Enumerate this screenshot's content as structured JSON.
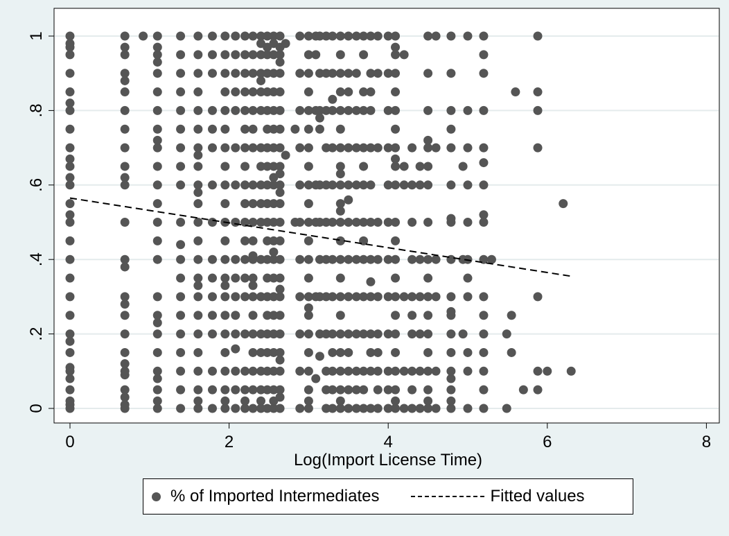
{
  "chart_data": {
    "type": "scatter",
    "xlabel": "Log(Import License Time)",
    "ylabel": "",
    "xlim": [
      0,
      8
    ],
    "ylim": [
      0,
      1
    ],
    "xticks": [
      0,
      2,
      4,
      6,
      8
    ],
    "xtick_labels": [
      "0",
      "2",
      "4",
      "6",
      "8"
    ],
    "yticks": [
      0,
      0.2,
      0.4,
      0.6,
      0.8,
      1
    ],
    "ytick_labels": [
      "0",
      ".2",
      ".4",
      ".6",
      ".8",
      "1"
    ],
    "grid": "horizontal",
    "legend_position": "bottom",
    "series": [
      {
        "name": "% of Imported Intermediates",
        "kind": "scatter",
        "color": "#555555",
        "columns": [
          {
            "x": 0,
            "y": [
              0,
              0.01,
              0.02,
              0.05,
              0.08,
              0.1,
              0.11,
              0.15,
              0.18,
              0.2,
              0.25,
              0.3,
              0.35,
              0.4,
              0.45,
              0.5,
              0.52,
              0.55,
              0.6,
              0.62,
              0.65,
              0.67,
              0.7,
              0.75,
              0.8,
              0.82,
              0.85,
              0.9,
              0.95,
              0.97,
              0.98,
              1
            ]
          },
          {
            "x": 0.69,
            "y": [
              0,
              0.01,
              0.03,
              0.05,
              0.09,
              0.1,
              0.12,
              0.15,
              0.2,
              0.25,
              0.28,
              0.3,
              0.38,
              0.4,
              0.5,
              0.6,
              0.62,
              0.65,
              0.7,
              0.75,
              0.8,
              0.85,
              0.88,
              0.9,
              0.95,
              0.97,
              1
            ]
          },
          {
            "x": 0.92,
            "y": [
              1
            ]
          },
          {
            "x": 1.1,
            "y": [
              0,
              0.02,
              0.05,
              0.08,
              0.1,
              0.15,
              0.2,
              0.23,
              0.25,
              0.3,
              0.4,
              0.45,
              0.5,
              0.55,
              0.6,
              0.65,
              0.7,
              0.72,
              0.75,
              0.8,
              0.85,
              0.9,
              0.93,
              0.95,
              0.97,
              1
            ]
          },
          {
            "x": 1.39,
            "y": [
              0,
              0.05,
              0.1,
              0.15,
              0.2,
              0.25,
              0.3,
              0.35,
              0.4,
              0.44,
              0.5,
              0.6,
              0.65,
              0.7,
              0.75,
              0.8,
              0.85,
              0.9,
              0.95,
              1
            ]
          },
          {
            "x": 1.61,
            "y": [
              0,
              0.02,
              0.05,
              0.1,
              0.15,
              0.2,
              0.25,
              0.3,
              0.33,
              0.35,
              0.4,
              0.45,
              0.5,
              0.55,
              0.58,
              0.6,
              0.65,
              0.68,
              0.7,
              0.75,
              0.8,
              0.85,
              0.9,
              0.95,
              1
            ]
          },
          {
            "x": 1.79,
            "y": [
              0,
              0.05,
              0.1,
              0.2,
              0.25,
              0.3,
              0.35,
              0.4,
              0.5,
              0.6,
              0.7,
              0.75,
              0.8,
              0.9,
              0.95,
              1
            ]
          },
          {
            "x": 1.95,
            "y": [
              0,
              0.02,
              0.05,
              0.1,
              0.15,
              0.2,
              0.25,
              0.3,
              0.33,
              0.35,
              0.4,
              0.45,
              0.5,
              0.55,
              0.6,
              0.65,
              0.7,
              0.75,
              0.8,
              0.85,
              0.9,
              0.95,
              1
            ]
          },
          {
            "x": 2.08,
            "y": [
              0,
              0.05,
              0.1,
              0.16,
              0.2,
              0.25,
              0.3,
              0.35,
              0.4,
              0.5,
              0.6,
              0.7,
              0.8,
              0.85,
              0.9,
              0.95,
              1
            ]
          },
          {
            "x": 2.2,
            "y": [
              0,
              0.02,
              0.05,
              0.1,
              0.2,
              0.3,
              0.35,
              0.4,
              0.45,
              0.5,
              0.55,
              0.6,
              0.65,
              0.7,
              0.75,
              0.8,
              0.85,
              0.9,
              0.95,
              1
            ]
          },
          {
            "x": 2.3,
            "y": [
              0,
              0.05,
              0.1,
              0.15,
              0.2,
              0.25,
              0.3,
              0.33,
              0.35,
              0.4,
              0.41,
              0.45,
              0.5,
              0.55,
              0.6,
              0.7,
              0.75,
              0.8,
              0.85,
              0.9,
              0.95,
              1
            ]
          },
          {
            "x": 2.4,
            "y": [
              0,
              0.02,
              0.05,
              0.1,
              0.15,
              0.2,
              0.3,
              0.4,
              0.5,
              0.55,
              0.6,
              0.65,
              0.7,
              0.8,
              0.85,
              0.88,
              0.9,
              0.95,
              0.98,
              1
            ]
          },
          {
            "x": 2.48,
            "y": [
              0,
              0.05,
              0.1,
              0.15,
              0.2,
              0.25,
              0.3,
              0.35,
              0.4,
              0.45,
              0.5,
              0.55,
              0.6,
              0.65,
              0.7,
              0.75,
              0.8,
              0.85,
              0.9,
              0.95,
              0.97,
              1
            ]
          },
          {
            "x": 2.56,
            "y": [
              0,
              0.02,
              0.05,
              0.1,
              0.15,
              0.2,
              0.25,
              0.3,
              0.35,
              0.4,
              0.42,
              0.45,
              0.5,
              0.55,
              0.6,
              0.62,
              0.65,
              0.7,
              0.75,
              0.8,
              0.85,
              0.9,
              0.95,
              0.98,
              1
            ]
          },
          {
            "x": 2.64,
            "y": [
              0,
              0.03,
              0.05,
              0.1,
              0.13,
              0.15,
              0.2,
              0.25,
              0.3,
              0.32,
              0.35,
              0.4,
              0.45,
              0.5,
              0.55,
              0.58,
              0.6,
              0.63,
              0.65,
              0.7,
              0.75,
              0.8,
              0.85,
              0.9,
              0.93,
              0.95,
              0.97,
              1
            ]
          },
          {
            "x": 2.71,
            "y": [
              0.68,
              0.98
            ]
          },
          {
            "x": 2.83,
            "y": [
              0.5,
              0.75
            ]
          },
          {
            "x": 2.89,
            "y": [
              0,
              0.1,
              0.2,
              0.3,
              0.4,
              0.5,
              0.6,
              0.7,
              0.8,
              0.9,
              1
            ]
          },
          {
            "x": 3.0,
            "y": [
              0,
              0.02,
              0.05,
              0.1,
              0.15,
              0.2,
              0.25,
              0.27,
              0.3,
              0.35,
              0.4,
              0.45,
              0.5,
              0.55,
              0.6,
              0.65,
              0.7,
              0.75,
              0.8,
              0.85,
              0.9,
              0.95,
              1
            ]
          },
          {
            "x": 3.09,
            "y": [
              0.08,
              0.3,
              0.5,
              0.6,
              0.8,
              0.95,
              1
            ]
          },
          {
            "x": 3.14,
            "y": [
              0.14,
              0.2,
              0.3,
              0.4,
              0.5,
              0.6,
              0.75,
              0.78,
              0.8,
              0.9,
              1
            ]
          },
          {
            "x": 3.22,
            "y": [
              0,
              0.05,
              0.1,
              0.2,
              0.3,
              0.4,
              0.5,
              0.6,
              0.7,
              0.8,
              0.9,
              1
            ]
          },
          {
            "x": 3.3,
            "y": [
              0,
              0.05,
              0.1,
              0.15,
              0.2,
              0.3,
              0.4,
              0.5,
              0.6,
              0.7,
              0.8,
              0.83,
              0.9,
              1
            ]
          },
          {
            "x": 3.4,
            "y": [
              0,
              0.02,
              0.05,
              0.1,
              0.15,
              0.2,
              0.25,
              0.3,
              0.35,
              0.4,
              0.45,
              0.5,
              0.53,
              0.55,
              0.6,
              0.63,
              0.65,
              0.7,
              0.75,
              0.8,
              0.85,
              0.9,
              0.95,
              1
            ]
          },
          {
            "x": 3.5,
            "y": [
              0,
              0.05,
              0.1,
              0.15,
              0.2,
              0.3,
              0.4,
              0.5,
              0.56,
              0.6,
              0.7,
              0.8,
              0.85,
              0.9,
              1
            ]
          },
          {
            "x": 3.6,
            "y": [
              0,
              0.05,
              0.1,
              0.2,
              0.3,
              0.4,
              0.5,
              0.6,
              0.7,
              0.8,
              0.9,
              1
            ]
          },
          {
            "x": 3.69,
            "y": [
              0,
              0.05,
              0.1,
              0.2,
              0.3,
              0.4,
              0.45,
              0.5,
              0.6,
              0.65,
              0.7,
              0.8,
              0.85,
              0.95,
              1
            ]
          },
          {
            "x": 3.78,
            "y": [
              0,
              0.1,
              0.15,
              0.2,
              0.3,
              0.34,
              0.4,
              0.5,
              0.6,
              0.7,
              0.8,
              0.85,
              0.9,
              1
            ]
          },
          {
            "x": 3.87,
            "y": [
              0,
              0.05,
              0.1,
              0.15,
              0.2,
              0.3,
              0.4,
              0.5,
              0.7,
              0.9,
              1
            ]
          },
          {
            "x": 4.0,
            "y": [
              0,
              0.05,
              0.1,
              0.2,
              0.3,
              0.4,
              0.5,
              0.6,
              0.7,
              0.8,
              0.9,
              1
            ]
          },
          {
            "x": 4.09,
            "y": [
              0,
              0.02,
              0.05,
              0.1,
              0.15,
              0.2,
              0.25,
              0.3,
              0.35,
              0.4,
              0.45,
              0.5,
              0.6,
              0.65,
              0.67,
              0.7,
              0.75,
              0.8,
              0.85,
              0.9,
              0.95,
              0.97,
              1
            ]
          },
          {
            "x": 4.2,
            "y": [
              0,
              0.1,
              0.3,
              0.6,
              0.65,
              0.95
            ]
          },
          {
            "x": 4.3,
            "y": [
              0,
              0.05,
              0.1,
              0.2,
              0.25,
              0.3,
              0.4,
              0.5,
              0.6,
              0.7
            ]
          },
          {
            "x": 4.4,
            "y": [
              0,
              0.1,
              0.2,
              0.3,
              0.4,
              0.6,
              0.65
            ]
          },
          {
            "x": 4.5,
            "y": [
              0,
              0.02,
              0.05,
              0.1,
              0.15,
              0.2,
              0.25,
              0.3,
              0.35,
              0.4,
              0.5,
              0.6,
              0.65,
              0.7,
              0.72,
              0.8,
              0.9,
              1
            ]
          },
          {
            "x": 4.6,
            "y": [
              0,
              0.1,
              0.3,
              0.4,
              0.7,
              1
            ]
          },
          {
            "x": 4.79,
            "y": [
              0,
              0.02,
              0.05,
              0.08,
              0.1,
              0.15,
              0.2,
              0.25,
              0.26,
              0.3,
              0.4,
              0.5,
              0.51,
              0.6,
              0.7,
              0.75,
              0.8,
              0.9,
              1
            ]
          },
          {
            "x": 4.94,
            "y": [
              0.2,
              0.4,
              0.65
            ]
          },
          {
            "x": 5.0,
            "y": [
              0,
              0.1,
              0.15,
              0.3,
              0.35,
              0.4,
              0.5,
              0.6,
              0.7,
              0.8,
              1
            ]
          },
          {
            "x": 5.2,
            "y": [
              0,
              0.05,
              0.1,
              0.15,
              0.2,
              0.25,
              0.3,
              0.4,
              0.5,
              0.52,
              0.6,
              0.66,
              0.7,
              0.8,
              0.9,
              0.95,
              1
            ]
          },
          {
            "x": 5.3,
            "y": [
              0.4
            ]
          },
          {
            "x": 5.49,
            "y": [
              0,
              0.2
            ]
          },
          {
            "x": 5.55,
            "y": [
              0.15,
              0.25
            ]
          },
          {
            "x": 5.6,
            "y": [
              0.85
            ]
          },
          {
            "x": 5.7,
            "y": [
              0.05
            ]
          },
          {
            "x": 5.88,
            "y": [
              0.05,
              0.1,
              0.3,
              0.7,
              0.8,
              0.85,
              1
            ]
          },
          {
            "x": 6.0,
            "y": [
              0.1
            ]
          },
          {
            "x": 6.2,
            "y": [
              0.55
            ]
          },
          {
            "x": 6.3,
            "y": [
              0.1
            ]
          }
        ]
      },
      {
        "name": "Fitted values",
        "kind": "line",
        "style": "dashed",
        "color": "#000000",
        "x": [
          0,
          6.3
        ],
        "y": [
          0.565,
          0.355
        ]
      }
    ]
  },
  "legend": {
    "items": [
      {
        "label": "% of Imported Intermediates",
        "symbol": "marker"
      },
      {
        "label": "Fitted values",
        "symbol": "dashed-line"
      }
    ]
  },
  "colors": {
    "background": "#eaf2f3",
    "plot_area": "#ffffff",
    "grid": "#e4ebec",
    "marker": "#555555",
    "fit_line": "#000000"
  }
}
